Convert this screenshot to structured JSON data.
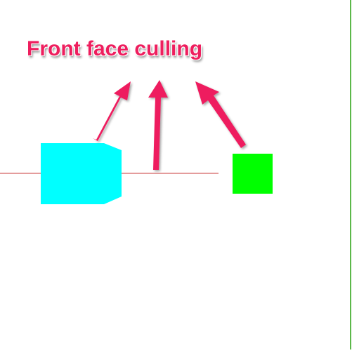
{
  "annotation": {
    "title": "Front face culling",
    "color": "#ee1e5e"
  },
  "colors": {
    "background": "#ffffff",
    "horizon_line": "#c83a3a",
    "cyan_object": "#00ffff",
    "green_object": "#00ff00",
    "right_border": "#5cb84a"
  },
  "icons": [
    "arrow-icon",
    "arrow-icon",
    "arrow-icon"
  ]
}
